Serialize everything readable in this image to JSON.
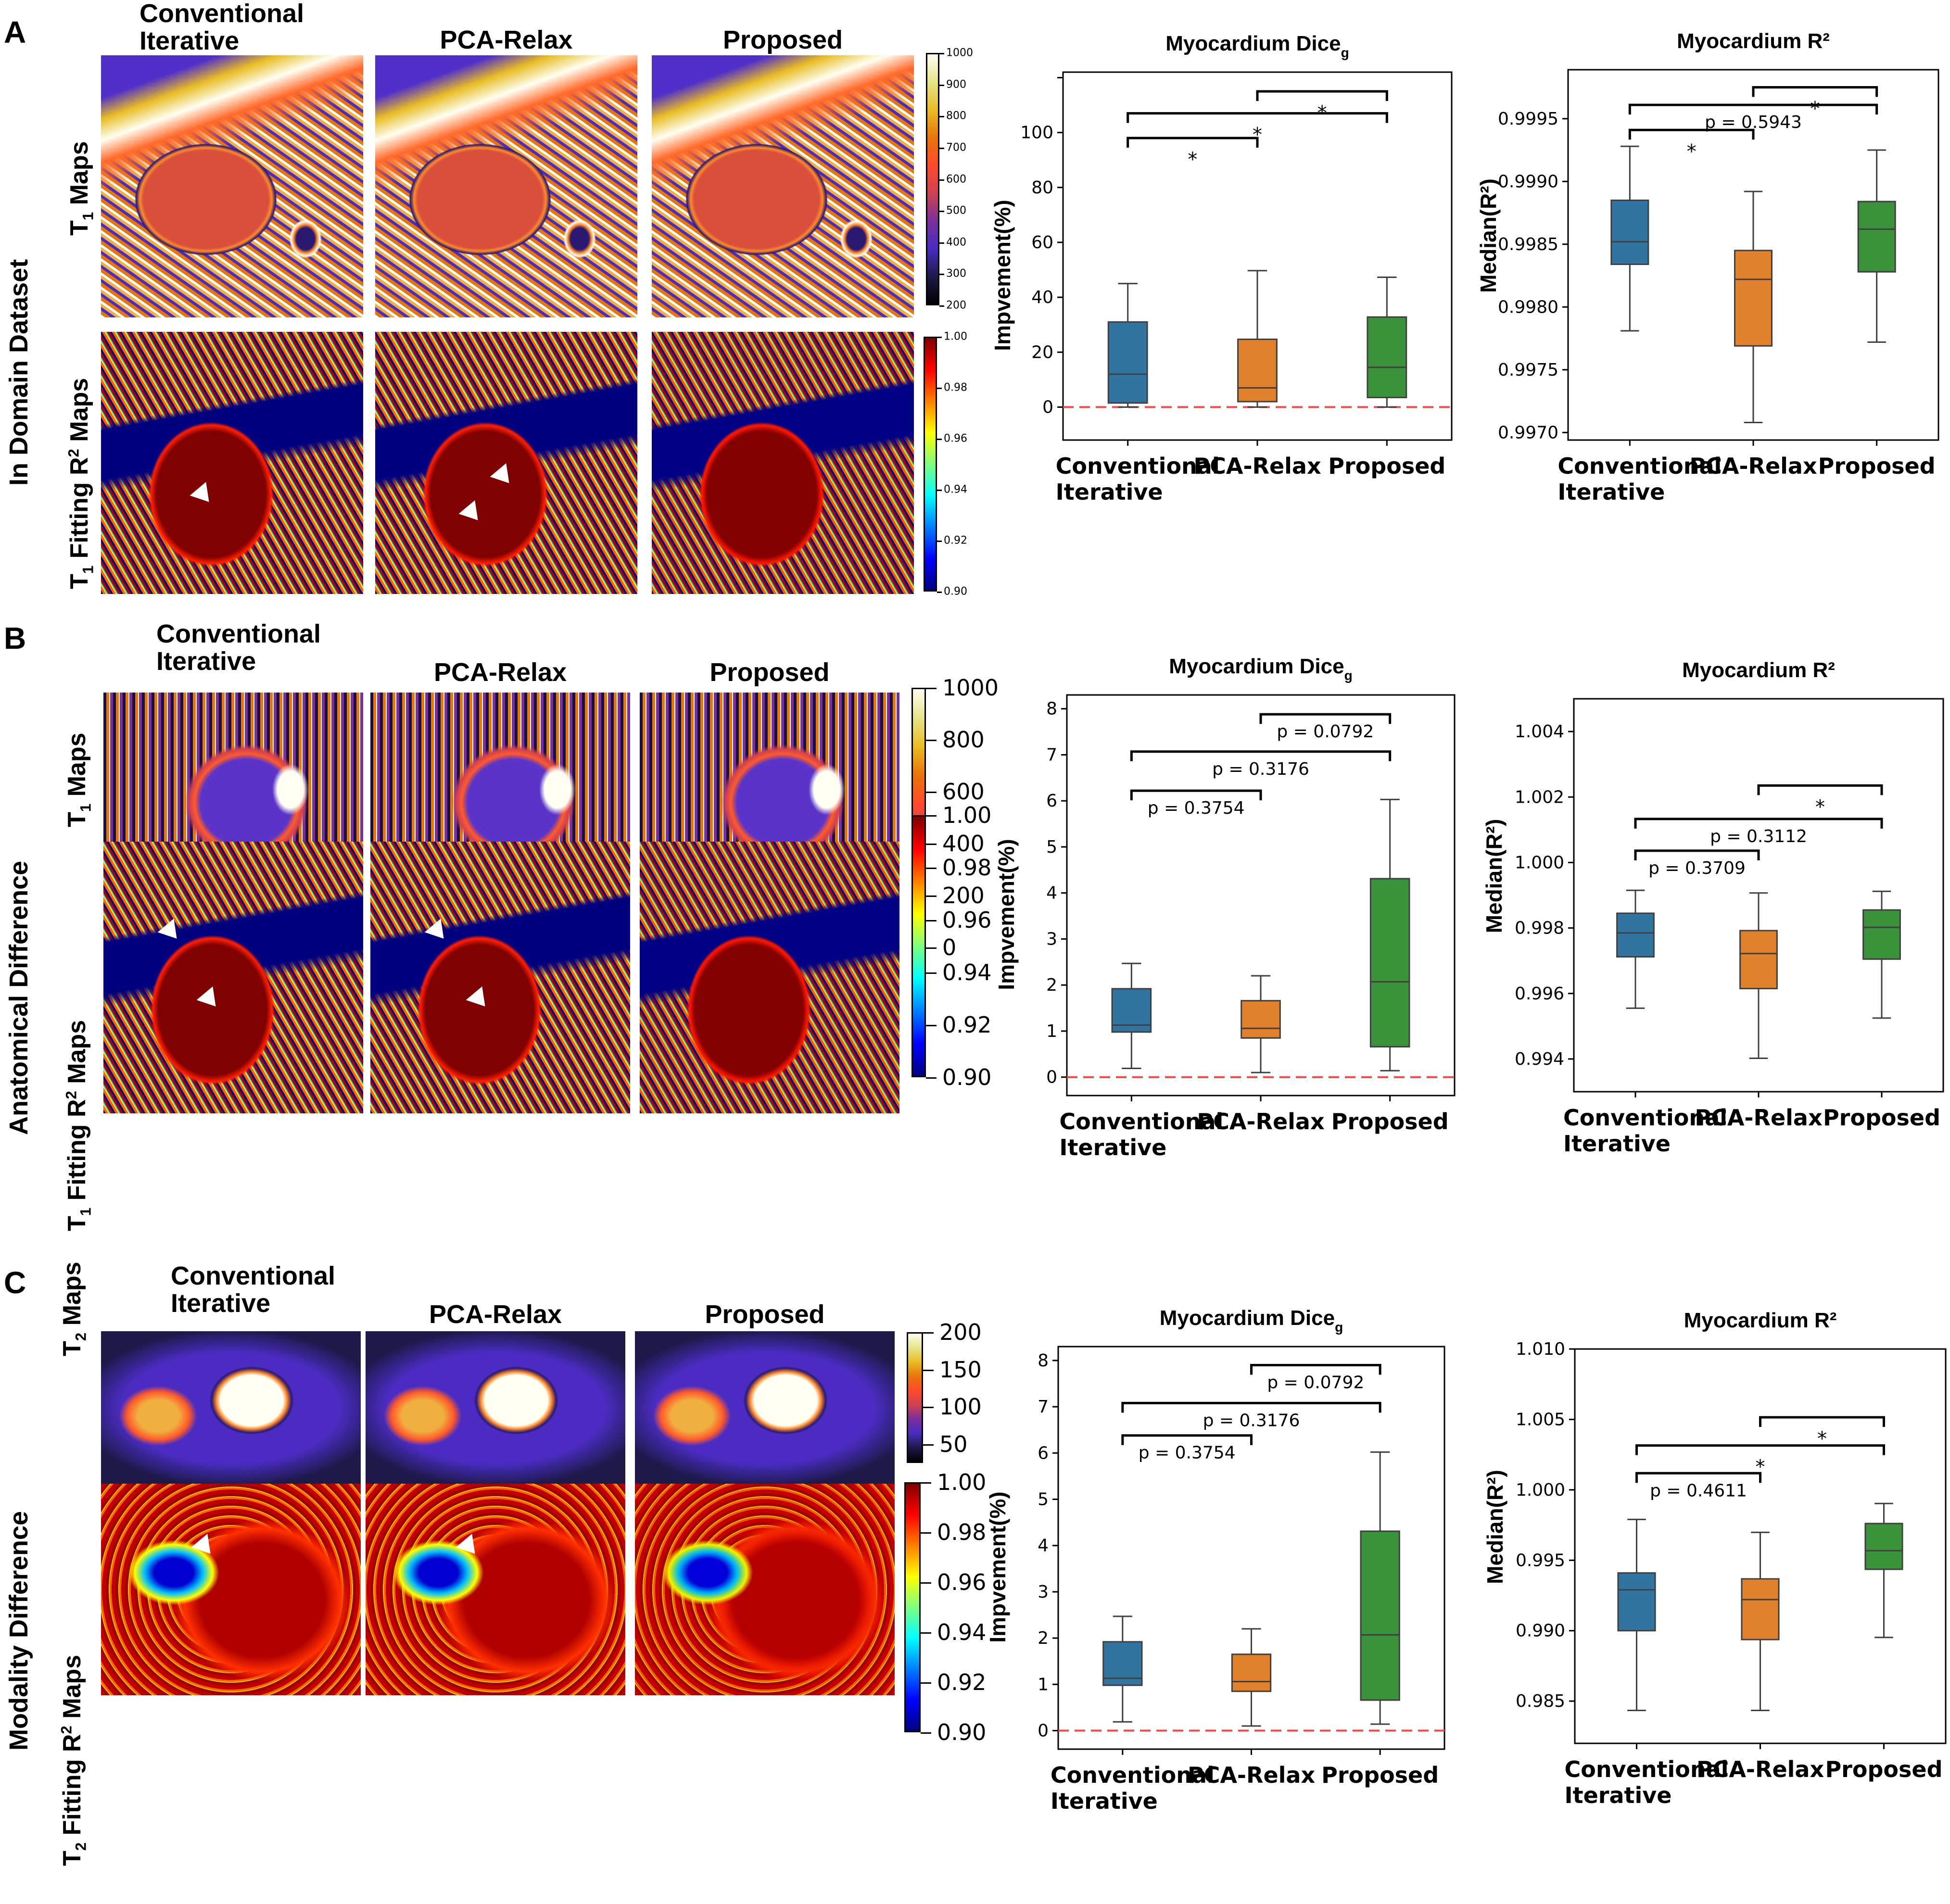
{
  "figure": {
    "panels": [
      {
        "letter": "A",
        "side_label": "In Domain Dataset",
        "columns": [
          "Conventional Iterative",
          "PCA-Relax",
          "Proposed"
        ],
        "rows": [
          {
            "label_main": "T",
            "label_sub": "1",
            "label_rest": " Maps",
            "colormap": "cmap-thermal",
            "colorbar": {
              "min": 200,
              "max": 1000,
              "ticks": [
                "200",
                "300",
                "400",
                "500",
                "600",
                "700",
                "800",
                "900",
                "1000"
              ]
            }
          },
          {
            "label_main": "T",
            "label_sub": "1",
            "label_rest": " Fitting R",
            "label_sup": "2",
            "label_end": " Maps",
            "colormap": "cmap-jet",
            "colorbar": {
              "min": 0.9,
              "max": 1.0,
              "ticks": [
                "0.90",
                "0.92",
                "0.94",
                "0.96",
                "0.98",
                "1.00"
              ]
            }
          }
        ],
        "arrow_markers": 3
      },
      {
        "letter": "B",
        "side_label": "Anatomical Difference",
        "columns": [
          "Conventional Iterative",
          "PCA-Relax",
          "Proposed"
        ],
        "rows": [
          {
            "label_main": "T",
            "label_sub": "1",
            "label_rest": " Maps",
            "colormap": "cmap-thermal",
            "colorbar": {
              "min": 0,
              "max": 1000,
              "ticks": [
                "0",
                "200",
                "400",
                "600",
                "800",
                "1000"
              ]
            }
          },
          {
            "label_main": "T",
            "label_sub": "1",
            "label_rest": " Fitting R",
            "label_sup": "2",
            "label_end": " Maps",
            "colormap": "cmap-jet",
            "colorbar": {
              "min": 0.9,
              "max": 1.0,
              "ticks": [
                "0.90",
                "0.92",
                "0.94",
                "0.96",
                "0.98",
                "1.00"
              ]
            }
          }
        ],
        "arrow_markers": 4
      },
      {
        "letter": "C",
        "side_label": "Modality Difference",
        "columns": [
          "Conventional Iterative",
          "PCA-Relax",
          "Proposed"
        ],
        "rows": [
          {
            "label_main": "T",
            "label_sub": "2",
            "label_rest": " Maps",
            "colormap": "cmap-thermal",
            "colorbar": {
              "min": 25,
              "max": 200,
              "ticks": [
                "50",
                "100",
                "150",
                "200"
              ]
            }
          },
          {
            "label_main": "T",
            "label_sub": "2",
            "label_rest": " Fitting R",
            "label_sup": "2",
            "label_end": " Maps",
            "colormap": "cmap-jet",
            "colorbar": {
              "min": 0.9,
              "max": 1.0,
              "ticks": [
                "0.90",
                "0.92",
                "0.94",
                "0.96",
                "0.98",
                "1.00"
              ]
            }
          }
        ],
        "arrow_markers": 2
      }
    ]
  },
  "colors": {
    "conventional": "#3274a1",
    "pca_relax": "#e1812c",
    "proposed": "#3a923a",
    "zero_line": "#f04848",
    "box_edge": "#3f3f3f"
  },
  "chart_data": [
    {
      "id": "A-dice",
      "type": "box",
      "title": "Myocardium Dice",
      "title_sub": "g",
      "xlabel": "",
      "ylabel": "Impvement(%)",
      "categories": [
        "Conventional\nIterative",
        "PCA-Relax",
        "Proposed"
      ],
      "ylim": [
        -12,
        122
      ],
      "yticks": [
        0,
        20,
        40,
        60,
        80,
        100,
        120
      ],
      "ytick_labels": [
        "0",
        "20",
        "40",
        "60",
        "80",
        "100",
        ""
      ],
      "zero_line": true,
      "grid": false,
      "series": [
        {
          "name": "Conventional Iterative",
          "whisker_low": 0,
          "q1": 1.5,
          "median": 12,
          "q3": 31,
          "whisker_high": 45
        },
        {
          "name": "PCA-Relax",
          "whisker_low": 0,
          "q1": 2,
          "median": 7,
          "q3": 24.7,
          "whisker_high": 49.7
        },
        {
          "name": "Proposed",
          "whisker_low": 0,
          "q1": 3.5,
          "median": 14.5,
          "q3": 32.8,
          "whisker_high": 47.3
        }
      ],
      "brackets": [
        {
          "from": 0,
          "to": 1,
          "y": 98,
          "label": "*"
        },
        {
          "from": 0,
          "to": 2,
          "y": 107,
          "label": "*"
        },
        {
          "from": 1,
          "to": 2,
          "y": 115,
          "label": "*"
        }
      ]
    },
    {
      "id": "A-r2",
      "type": "box",
      "title": "Myocardium R²",
      "xlabel": "",
      "ylabel": "Median(R²)",
      "categories": [
        "Conventional\nIterative",
        "PCA-Relax",
        "Proposed"
      ],
      "ylim": [
        0.99694,
        0.99989
      ],
      "yticks": [
        0.997,
        0.9975,
        0.998,
        0.9985,
        0.999,
        0.9995
      ],
      "ytick_labels": [
        "0.9970",
        "0.9975",
        "0.9980",
        "0.9985",
        "0.9990",
        "0.9995"
      ],
      "zero_line": false,
      "grid": false,
      "series": [
        {
          "name": "Conventional Iterative",
          "whisker_low": 0.99781,
          "q1": 0.99834,
          "median": 0.99852,
          "q3": 0.99885,
          "whisker_high": 0.99928
        },
        {
          "name": "PCA-Relax",
          "whisker_low": 0.99708,
          "q1": 0.99769,
          "median": 0.99822,
          "q3": 0.99845,
          "whisker_high": 0.99892
        },
        {
          "name": "Proposed",
          "whisker_low": 0.99772,
          "q1": 0.99828,
          "median": 0.99862,
          "q3": 0.99884,
          "whisker_high": 0.99925
        }
      ],
      "brackets": [
        {
          "from": 0,
          "to": 1,
          "y": 0.99941,
          "label": "*"
        },
        {
          "from": 0,
          "to": 2,
          "y": 0.99961,
          "label": "p = 0.5943"
        },
        {
          "from": 1,
          "to": 2,
          "y": 0.99975,
          "label": "*"
        }
      ]
    },
    {
      "id": "B-dice",
      "type": "box",
      "title": "Myocardium Dice",
      "title_sub": "g",
      "xlabel": "",
      "ylabel": "Impvement(%)",
      "categories": [
        "Conventional\nIterative",
        "PCA-Relax",
        "Proposed"
      ],
      "ylim": [
        -0.4,
        8.3
      ],
      "yticks": [
        0,
        1,
        2,
        3,
        4,
        5,
        6,
        7,
        8
      ],
      "ytick_labels": [
        "0",
        "1",
        "2",
        "3",
        "4",
        "5",
        "6",
        "7",
        "8"
      ],
      "zero_line": true,
      "grid": false,
      "series": [
        {
          "name": "Conventional Iterative",
          "whisker_low": 0.19,
          "q1": 0.98,
          "median": 1.13,
          "q3": 1.92,
          "whisker_high": 2.47
        },
        {
          "name": "PCA-Relax",
          "whisker_low": 0.1,
          "q1": 0.85,
          "median": 1.06,
          "q3": 1.66,
          "whisker_high": 2.2
        },
        {
          "name": "Proposed",
          "whisker_low": 0.14,
          "q1": 0.66,
          "median": 2.07,
          "q3": 4.31,
          "whisker_high": 6.03
        }
      ],
      "brackets": [
        {
          "from": 0,
          "to": 1,
          "y": 6.22,
          "label": "p = 0.3754"
        },
        {
          "from": 0,
          "to": 2,
          "y": 7.07,
          "label": "p = 0.3176"
        },
        {
          "from": 1,
          "to": 2,
          "y": 7.88,
          "label": "p = 0.0792"
        }
      ]
    },
    {
      "id": "B-r2",
      "type": "box",
      "title": "Myocardium R²",
      "xlabel": "",
      "ylabel": "Median(R²)",
      "categories": [
        "Conventional\nIterative",
        "PCA-Relax",
        "Proposed"
      ],
      "ylim": [
        0.993,
        1.005
      ],
      "yticks": [
        0.994,
        0.996,
        0.998,
        1.0,
        1.002,
        1.004
      ],
      "ytick_labels": [
        "0.994",
        "0.996",
        "0.998",
        "1.000",
        "1.002",
        "1.004"
      ],
      "zero_line": false,
      "grid": false,
      "series": [
        {
          "name": "Conventional Iterative",
          "whisker_low": 0.99555,
          "q1": 0.99712,
          "median": 0.99785,
          "q3": 0.99845,
          "whisker_high": 0.99915
        },
        {
          "name": "PCA-Relax",
          "whisker_low": 0.99402,
          "q1": 0.99615,
          "median": 0.99722,
          "q3": 0.99792,
          "whisker_high": 0.99907
        },
        {
          "name": "Proposed",
          "whisker_low": 0.99525,
          "q1": 0.99705,
          "median": 0.99802,
          "q3": 0.99855,
          "whisker_high": 0.99912
        }
      ],
      "brackets": [
        {
          "from": 0,
          "to": 1,
          "y": 1.00036,
          "label": "p = 0.3709"
        },
        {
          "from": 0,
          "to": 2,
          "y": 1.00133,
          "label": "p = 0.3112"
        },
        {
          "from": 1,
          "to": 2,
          "y": 1.00235,
          "label": "*"
        }
      ]
    },
    {
      "id": "C-dice",
      "type": "box",
      "title": "Myocardium Dice",
      "title_sub": "g",
      "xlabel": "",
      "ylabel": "Impvement(%)",
      "categories": [
        "Conventional\nIterative",
        "PCA-Relax",
        "Proposed"
      ],
      "ylim": [
        -0.4,
        8.3
      ],
      "yticks": [
        0,
        1,
        2,
        3,
        4,
        5,
        6,
        7,
        8
      ],
      "ytick_labels": [
        "0",
        "1",
        "2",
        "3",
        "4",
        "5",
        "6",
        "7",
        "8"
      ],
      "zero_line": true,
      "grid": false,
      "series": [
        {
          "name": "Conventional Iterative",
          "whisker_low": 0.19,
          "q1": 0.98,
          "median": 1.13,
          "q3": 1.92,
          "whisker_high": 2.47
        },
        {
          "name": "PCA-Relax",
          "whisker_low": 0.1,
          "q1": 0.85,
          "median": 1.06,
          "q3": 1.65,
          "whisker_high": 2.2
        },
        {
          "name": "Proposed",
          "whisker_low": 0.14,
          "q1": 0.66,
          "median": 2.07,
          "q3": 4.31,
          "whisker_high": 6.02
        }
      ],
      "brackets": [
        {
          "from": 0,
          "to": 1,
          "y": 6.38,
          "label": "p = 0.3754"
        },
        {
          "from": 0,
          "to": 2,
          "y": 7.08,
          "label": "p = 0.3176"
        },
        {
          "from": 1,
          "to": 2,
          "y": 7.9,
          "label": "p = 0.0792"
        }
      ]
    },
    {
      "id": "C-r2",
      "type": "box",
      "title": "Myocardium R²",
      "xlabel": "",
      "ylabel": "Median(R²)",
      "categories": [
        "Conventional\nIterative",
        "PCA-Relax",
        "Proposed"
      ],
      "ylim": [
        0.982,
        1.01
      ],
      "yticks": [
        0.985,
        0.99,
        0.995,
        1.0,
        1.005,
        1.01
      ],
      "ytick_labels": [
        "0.985",
        "0.990",
        "0.995",
        "1.000",
        "1.005",
        "1.010"
      ],
      "zero_line": false,
      "grid": false,
      "series": [
        {
          "name": "Conventional Iterative",
          "whisker_low": 0.98434,
          "q1": 0.99,
          "median": 0.9929,
          "q3": 0.9941,
          "whisker_high": 0.9979
        },
        {
          "name": "PCA-Relax",
          "whisker_low": 0.98434,
          "q1": 0.98937,
          "median": 0.99221,
          "q3": 0.99368,
          "whisker_high": 0.99698
        },
        {
          "name": "Proposed",
          "whisker_low": 0.98952,
          "q1": 0.99436,
          "median": 0.99568,
          "q3": 0.99761,
          "whisker_high": 0.99903
        }
      ],
      "brackets": [
        {
          "from": 0,
          "to": 1,
          "y": 1.00118,
          "label": "p = 0.4611"
        },
        {
          "from": 0,
          "to": 2,
          "y": 1.00315,
          "label": "*"
        },
        {
          "from": 1,
          "to": 2,
          "y": 1.00515,
          "label": "*"
        }
      ]
    }
  ]
}
